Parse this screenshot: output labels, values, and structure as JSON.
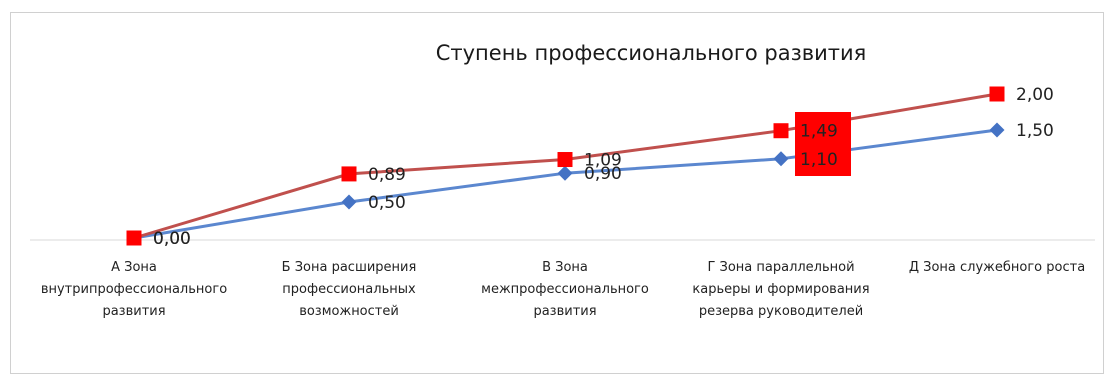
{
  "chart_data": {
    "type": "line",
    "title": "Ступень профессионального развития",
    "categories": [
      "А Зона внутрипрофессионального развития",
      "Б Зона расширения профессиональных возможностей",
      "В Зона межпрофессионального развития",
      "Г Зона  параллельной карьеры и формирования резерва руководителей",
      "Д Зона служебного роста"
    ],
    "category_lines": [
      [
        "А Зона",
        "внутрипрофессионального",
        "развития"
      ],
      [
        "Б Зона расширения",
        "профессиональных",
        "возможностей"
      ],
      [
        "В Зона",
        "межпрофессионального",
        "развития"
      ],
      [
        "Г Зона  параллельной",
        "карьеры и формирования",
        "резерва руководителей"
      ],
      [
        "Д Зона служебного роста"
      ]
    ],
    "series": [
      {
        "values": [
          0.0,
          0.5,
          0.9,
          1.1,
          1.5
        ],
        "labels": [
          "0,00",
          "0,50",
          "0,90",
          "1,10",
          "1,50"
        ],
        "color": "#4472c4",
        "line_color": "#5b87cf",
        "marker": "diamond"
      },
      {
        "values": [
          0.0,
          0.89,
          1.09,
          1.49,
          2.0
        ],
        "labels": [
          "0,00",
          "0,89",
          "1,09",
          "1,49",
          "2,00"
        ],
        "color": "#ff0000",
        "line_color": "#c0504d",
        "marker": "square"
      }
    ],
    "highlight_box_color": "#ff0000",
    "ylim": [
      0,
      2.0
    ],
    "grid": false,
    "legend": "none"
  }
}
